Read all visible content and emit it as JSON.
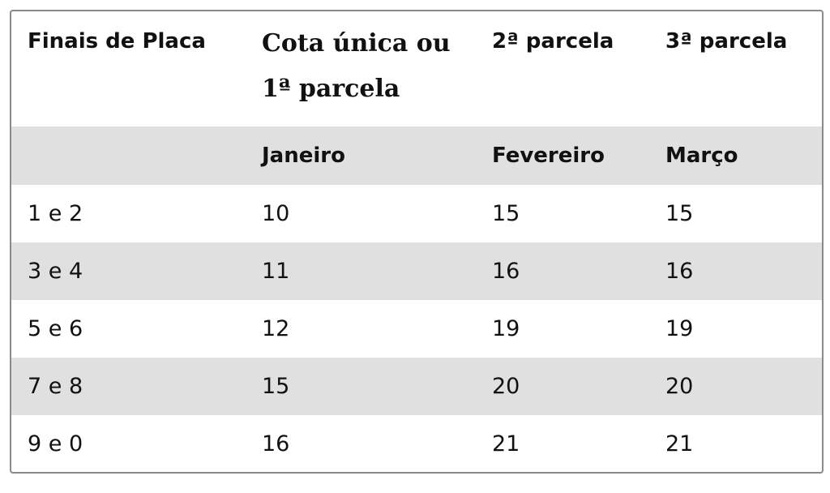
{
  "headers": [
    "Finais de Placa",
    "Cota única ou 1ª parcela",
    "2ª parcela",
    "3ª parcela"
  ],
  "months": [
    "",
    "Janeiro",
    "Fevereiro",
    "Março"
  ],
  "rows": [
    [
      "1 e 2",
      "10",
      "15",
      "15"
    ],
    [
      "3 e 4",
      "11",
      "16",
      "16"
    ],
    [
      "5 e 6",
      "12",
      "19",
      "19"
    ],
    [
      "7 e 8",
      "15",
      "20",
      "20"
    ],
    [
      "9 e 0",
      "16",
      "21",
      "21"
    ]
  ]
}
